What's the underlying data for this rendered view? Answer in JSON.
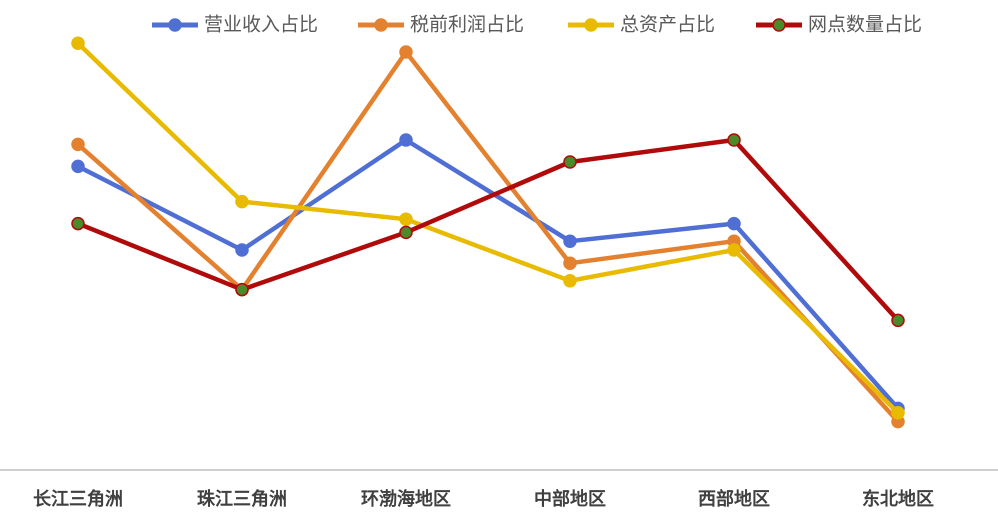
{
  "chart_data": {
    "type": "line",
    "title": "",
    "xlabel": "",
    "ylabel": "",
    "categories": [
      "长江三角洲",
      "珠江三角洲",
      "环渤海地区",
      "中部地区",
      "西部地区",
      "东北地区"
    ],
    "ylim": [
      0,
      100
    ],
    "grid": false,
    "legend_position": "top",
    "series": [
      {
        "name": "营业收入占比",
        "color": "#4f6fd4",
        "marker_fill": "#4f6fd4",
        "values": [
          69,
          50,
          75,
          52,
          56,
          14
        ]
      },
      {
        "name": "税前利润占比",
        "color": "#e3812f",
        "marker_fill": "#e3812f",
        "values": [
          74,
          41,
          95,
          47,
          52,
          11
        ]
      },
      {
        "name": "总资产占比",
        "color": "#e8bb00",
        "marker_fill": "#e8bb00",
        "values": [
          97,
          61,
          57,
          43,
          50,
          13
        ]
      },
      {
        "name": "网点数量占比",
        "color": "#b00a0a",
        "marker_fill": "#4a8a2a",
        "values": [
          56,
          41,
          54,
          70,
          75,
          34
        ]
      }
    ]
  }
}
